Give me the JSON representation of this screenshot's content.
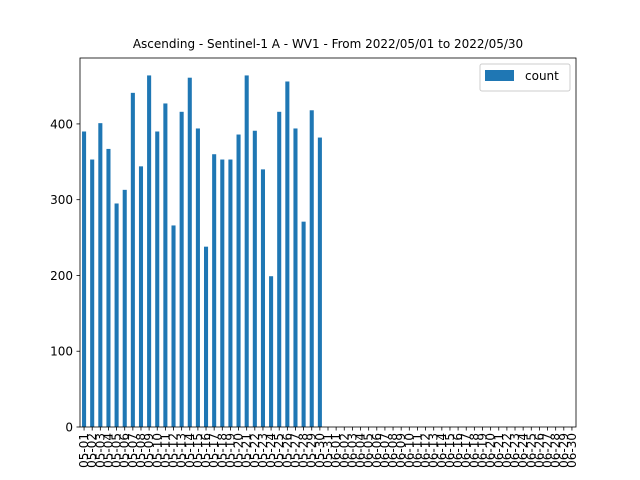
{
  "chart_data": {
    "type": "bar",
    "title": "Ascending - Sentinel-1 A - WV1 - From 2022/05/01 to 2022/05/30",
    "xlabel": "",
    "ylabel": "",
    "ylim": [
      0,
      487
    ],
    "yticks": [
      0,
      100,
      200,
      300,
      400
    ],
    "grid": false,
    "legend_position": "top-right",
    "bar_color": "#1f77b4",
    "categories": [
      "05-01",
      "05-02",
      "05-03",
      "05-04",
      "05-05",
      "05-06",
      "05-07",
      "05-08",
      "05-09",
      "05-10",
      "05-11",
      "05-12",
      "05-13",
      "05-14",
      "05-15",
      "05-16",
      "05-17",
      "05-18",
      "05-19",
      "05-20",
      "05-21",
      "05-22",
      "05-23",
      "05-24",
      "05-25",
      "05-26",
      "05-27",
      "05-28",
      "05-29",
      "05-30",
      "05-31",
      "06-01",
      "06-02",
      "06-03",
      "06-04",
      "06-05",
      "06-06",
      "06-07",
      "06-08",
      "06-09",
      "06-10",
      "06-11",
      "06-12",
      "06-13",
      "06-14",
      "06-15",
      "06-16",
      "06-17",
      "06-18",
      "06-19",
      "06-20",
      "06-21",
      "06-22",
      "06-23",
      "06-24",
      "06-25",
      "06-26",
      "06-27",
      "06-28",
      "06-29",
      "06-30"
    ],
    "series": [
      {
        "name": "count",
        "values": [
          390,
          353,
          401,
          367,
          295,
          313,
          441,
          344,
          464,
          390,
          427,
          266,
          416,
          461,
          394,
          238,
          360,
          353,
          353,
          386,
          464,
          391,
          340,
          199,
          416,
          456,
          394,
          271,
          418,
          382,
          0,
          0,
          0,
          0,
          0,
          0,
          0,
          0,
          0,
          0,
          0,
          0,
          0,
          0,
          0,
          0,
          0,
          0,
          0,
          0,
          0,
          0,
          0,
          0,
          0,
          0,
          0,
          0,
          0,
          0,
          0
        ]
      }
    ]
  }
}
